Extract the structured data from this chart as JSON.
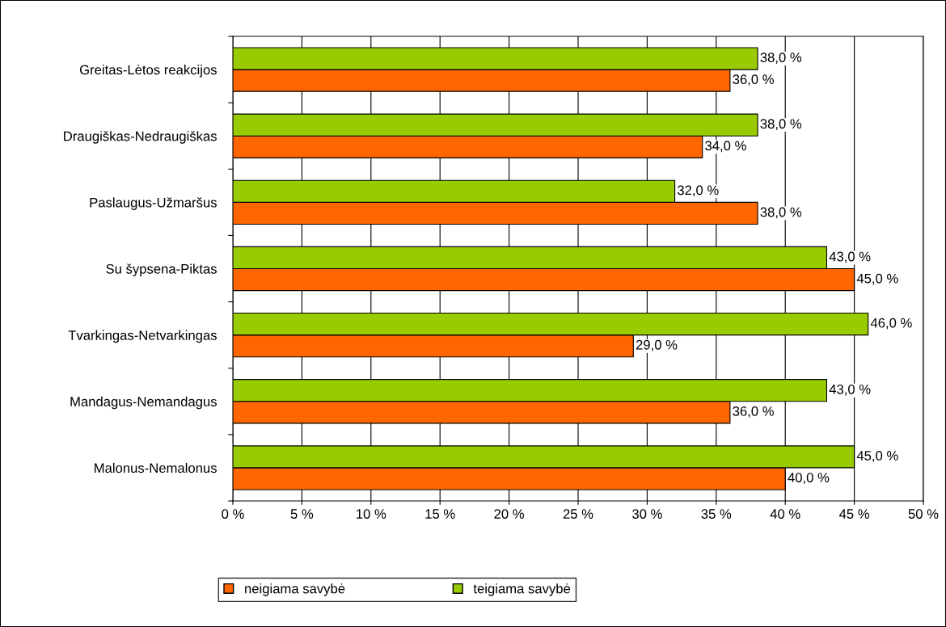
{
  "chart_data": {
    "type": "bar",
    "orientation": "horizontal",
    "categories": [
      "Greitas-Lėtos reakcijos",
      "Draugiškas-Nedraugiškas",
      "Paslaugus-Užmaršus",
      "Su šypsena-Piktas",
      "Tvarkingas-Netvarkingas",
      "Mandagus-Nemandagus",
      "Malonus-Nemalonus"
    ],
    "series": [
      {
        "name": "neigiama savybė",
        "color": "#ff6600",
        "values": [
          36,
          34,
          38,
          45,
          29,
          36,
          40
        ],
        "value_labels": [
          "36,0 %",
          "34,0 %",
          "38,0 %",
          "45,0 %",
          "29,0 %",
          "36,0 %",
          "40,0 %"
        ]
      },
      {
        "name": "teigiama savybė",
        "color": "#99cc00",
        "values": [
          38,
          38,
          32,
          43,
          46,
          43,
          45
        ],
        "value_labels": [
          "38,0 %",
          "38,0 %",
          "32,0 %",
          "43,0 %",
          "46,0 %",
          "43,0 %",
          "45,0 %"
        ]
      }
    ],
    "xlim": [
      0,
      50
    ],
    "xticks": [
      {
        "value": 0,
        "label": "0 %"
      },
      {
        "value": 5,
        "label": "5 %"
      },
      {
        "value": 10,
        "label": "10 %"
      },
      {
        "value": 15,
        "label": "15 %"
      },
      {
        "value": 20,
        "label": "20 %"
      },
      {
        "value": 25,
        "label": "25 %"
      },
      {
        "value": 30,
        "label": "30 %"
      },
      {
        "value": 35,
        "label": "35 %"
      },
      {
        "value": 40,
        "label": "40 %"
      },
      {
        "value": 45,
        "label": "45 %"
      },
      {
        "value": 50,
        "label": "50 %"
      }
    ],
    "grid": "x",
    "legend": "bottom"
  }
}
